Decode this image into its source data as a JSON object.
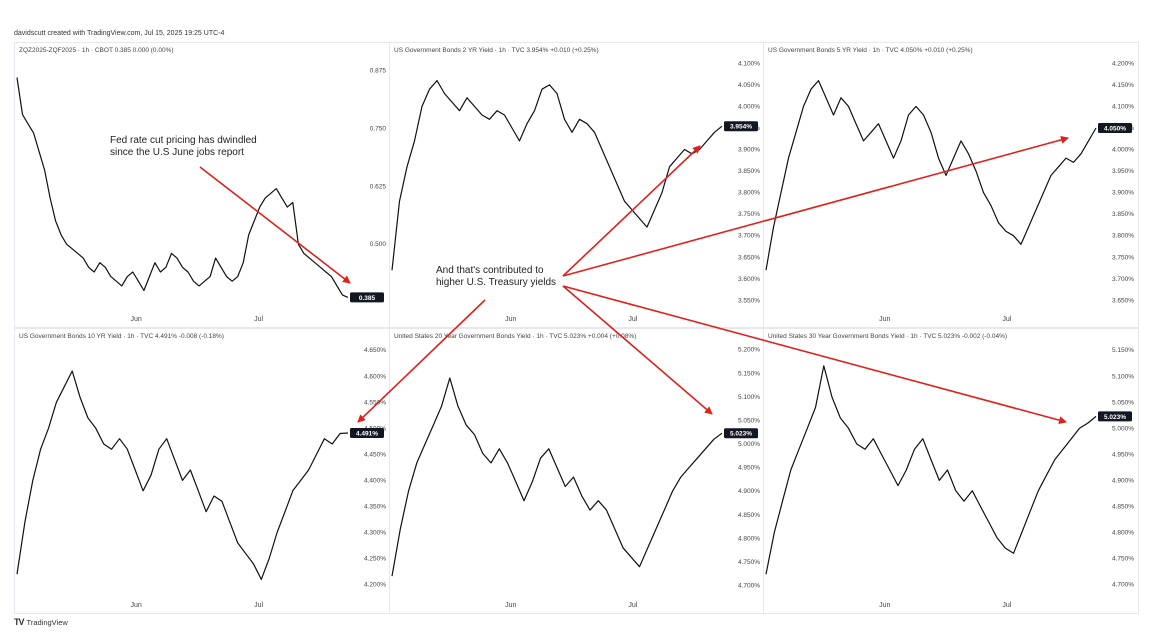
{
  "header": {
    "text": "davidscutt created with TradingView.com, Jul 15, 2025 19:25 UTC-4"
  },
  "footer": {
    "logo_icon": "tradingview-logo-icon",
    "logo_mark": "TV",
    "text": "TradingView"
  },
  "annotations": {
    "note1": "Fed rate cut pricing has dwindled since the U.S June jobs report",
    "note2": "And that's contributed to higher U.S. Treasury yields",
    "arrow_color": "#e0201b"
  },
  "chart_data": [
    {
      "type": "line",
      "title": "ZQZ2025-ZQF2025 · 1h · CBOT  0.385  0.000 (0.00%)",
      "x_ticks": [
        "Jun",
        "Jul"
      ],
      "y_ticks": [
        "0.875",
        "0.750",
        "0.625",
        "0.500"
      ],
      "ylim": [
        0.36,
        0.9
      ],
      "last_value": "0.385",
      "series": [
        {
          "values": [
            0.86,
            0.78,
            0.76,
            0.74,
            0.7,
            0.66,
            0.6,
            0.55,
            0.52,
            0.5,
            0.49,
            0.48,
            0.47,
            0.45,
            0.44,
            0.46,
            0.45,
            0.43,
            0.42,
            0.41,
            0.43,
            0.44,
            0.42,
            0.4,
            0.43,
            0.46,
            0.44,
            0.45,
            0.48,
            0.47,
            0.45,
            0.44,
            0.42,
            0.41,
            0.42,
            0.43,
            0.47,
            0.45,
            0.43,
            0.42,
            0.43,
            0.46,
            0.52,
            0.55,
            0.58,
            0.6,
            0.61,
            0.62,
            0.6,
            0.58,
            0.59,
            0.5,
            0.48,
            0.47,
            0.46,
            0.45,
            0.44,
            0.43,
            0.41,
            0.39,
            0.385
          ]
        }
      ]
    },
    {
      "type": "line",
      "title": "US Government Bonds 2 YR Yield · 1h · TVC  3.954%  +0.010 (+0.25%)",
      "x_ticks": [
        "Jun",
        "Jul"
      ],
      "y_ticks": [
        "4.100%",
        "4.050%",
        "4.000%",
        "3.950%",
        "3.900%",
        "3.850%",
        "3.800%",
        "3.750%",
        "3.700%",
        "3.650%",
        "3.600%",
        "3.550%"
      ],
      "ylim": [
        3.53,
        4.11
      ],
      "last_value": "3.954%",
      "series": [
        {
          "values": [
            3.62,
            3.78,
            3.86,
            3.92,
            4.0,
            4.04,
            4.06,
            4.03,
            4.01,
            3.99,
            4.02,
            4.0,
            3.98,
            3.97,
            3.99,
            3.98,
            3.95,
            3.92,
            3.96,
            3.99,
            4.04,
            4.05,
            4.03,
            3.97,
            3.94,
            3.97,
            3.96,
            3.94,
            3.9,
            3.86,
            3.82,
            3.78,
            3.76,
            3.74,
            3.72,
            3.76,
            3.8,
            3.86,
            3.88,
            3.9,
            3.89,
            3.9,
            3.92,
            3.94,
            3.954
          ]
        }
      ]
    },
    {
      "type": "line",
      "title": "US Government Bonds 5 YR Yield · 1h · TVC  4.050%  +0.010 (+0.25%)",
      "x_ticks": [
        "Jun",
        "Jul"
      ],
      "y_ticks": [
        "4.200%",
        "4.150%",
        "4.100%",
        "4.050%",
        "4.000%",
        "3.950%",
        "3.900%",
        "3.850%",
        "3.800%",
        "3.750%",
        "3.700%",
        "3.650%"
      ],
      "ylim": [
        3.63,
        4.21
      ],
      "last_value": "4.050%",
      "series": [
        {
          "values": [
            3.72,
            3.82,
            3.9,
            3.98,
            4.04,
            4.1,
            4.14,
            4.16,
            4.12,
            4.08,
            4.12,
            4.1,
            4.06,
            4.02,
            4.04,
            4.06,
            4.02,
            3.98,
            4.02,
            4.08,
            4.1,
            4.08,
            4.04,
            3.98,
            3.94,
            3.98,
            4.02,
            3.99,
            3.95,
            3.9,
            3.87,
            3.83,
            3.81,
            3.8,
            3.78,
            3.82,
            3.86,
            3.9,
            3.94,
            3.96,
            3.98,
            3.97,
            3.99,
            4.02,
            4.05
          ]
        }
      ]
    },
    {
      "type": "line",
      "title": "US Government Bonds 10 YR Yield · 1h · TVC  4.491%  -0.008 (-0.18%)",
      "x_ticks": [
        "Jun",
        "Jul"
      ],
      "y_ticks": [
        "4.650%",
        "4.600%",
        "4.550%",
        "4.500%",
        "4.450%",
        "4.400%",
        "4.350%",
        "4.300%",
        "4.250%",
        "4.200%"
      ],
      "ylim": [
        4.18,
        4.66
      ],
      "last_value": "4.491%",
      "series": [
        {
          "values": [
            4.22,
            4.32,
            4.4,
            4.46,
            4.5,
            4.55,
            4.58,
            4.61,
            4.56,
            4.52,
            4.5,
            4.47,
            4.46,
            4.48,
            4.46,
            4.42,
            4.38,
            4.41,
            4.46,
            4.48,
            4.44,
            4.4,
            4.42,
            4.38,
            4.34,
            4.37,
            4.36,
            4.32,
            4.28,
            4.26,
            4.24,
            4.21,
            4.25,
            4.3,
            4.34,
            4.38,
            4.4,
            4.42,
            4.45,
            4.48,
            4.47,
            4.49,
            4.491
          ]
        }
      ]
    },
    {
      "type": "line",
      "title": "United States 20 Year Government Bonds Yield · 1h · TVC  5.023%  +0.004 (+0.08%)",
      "x_ticks": [
        "Jun",
        "Jul"
      ],
      "y_ticks": [
        "5.200%",
        "5.150%",
        "5.100%",
        "5.050%",
        "5.000%",
        "4.950%",
        "4.900%",
        "4.850%",
        "4.800%",
        "4.750%",
        "4.700%"
      ],
      "ylim": [
        4.68,
        5.21
      ],
      "last_value": "5.023%",
      "series": [
        {
          "values": [
            4.72,
            4.82,
            4.9,
            4.96,
            5.0,
            5.04,
            5.08,
            5.14,
            5.08,
            5.04,
            5.02,
            4.98,
            4.96,
            4.99,
            4.96,
            4.92,
            4.88,
            4.92,
            4.97,
            4.99,
            4.95,
            4.91,
            4.93,
            4.89,
            4.86,
            4.88,
            4.86,
            4.82,
            4.78,
            4.76,
            4.74,
            4.78,
            4.82,
            4.86,
            4.9,
            4.93,
            4.95,
            4.97,
            4.99,
            5.01,
            5.023
          ]
        }
      ]
    },
    {
      "type": "line",
      "title": "United States 30 Year Government Bonds Yield · 1h · TVC  5.023%  -0.002 (-0.04%)",
      "x_ticks": [
        "Jun",
        "Jul"
      ],
      "y_ticks": [
        "5.150%",
        "5.100%",
        "5.050%",
        "5.000%",
        "4.950%",
        "4.900%",
        "4.850%",
        "4.800%",
        "4.750%",
        "4.700%"
      ],
      "ylim": [
        4.68,
        5.16
      ],
      "last_value": "5.023%",
      "series": [
        {
          "values": [
            4.72,
            4.8,
            4.86,
            4.92,
            4.96,
            5.0,
            5.04,
            5.12,
            5.06,
            5.02,
            5.0,
            4.97,
            4.96,
            4.98,
            4.95,
            4.92,
            4.89,
            4.92,
            4.96,
            4.98,
            4.94,
            4.9,
            4.92,
            4.88,
            4.86,
            4.88,
            4.85,
            4.82,
            4.79,
            4.77,
            4.76,
            4.8,
            4.84,
            4.88,
            4.91,
            4.94,
            4.96,
            4.98,
            5.0,
            5.01,
            5.023
          ]
        }
      ]
    }
  ]
}
